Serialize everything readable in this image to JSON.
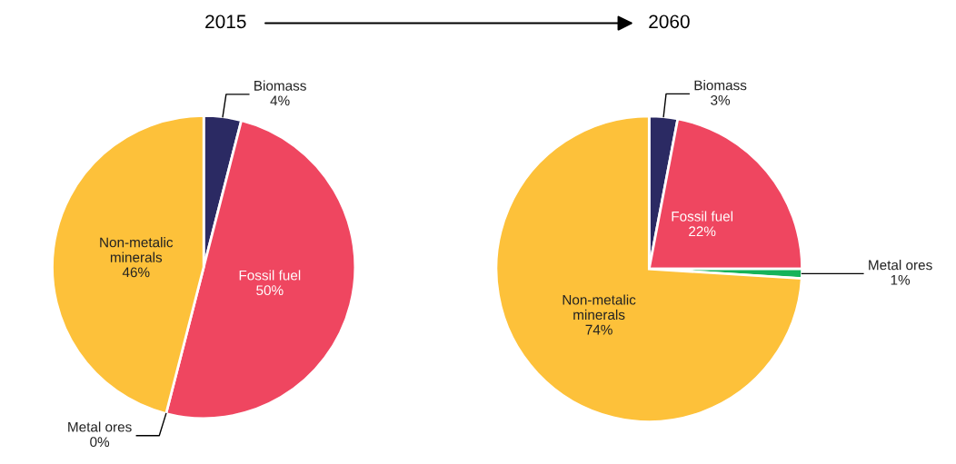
{
  "chart_data": [
    {
      "type": "pie",
      "title": "2015",
      "categories": [
        "Biomass",
        "Fossil fuel",
        "Metal ores",
        "Non-metalic\nminerals"
      ],
      "values": [
        4,
        50,
        0,
        46
      ],
      "value_labels": [
        "4%",
        "50%",
        "0%",
        "46%"
      ],
      "colors": [
        "#2b2a63",
        "#ef4660",
        "#16b35a",
        "#fdc13a"
      ]
    },
    {
      "type": "pie",
      "title": "2060",
      "categories": [
        "Biomass",
        "Fossil fuel",
        "Metal ores",
        "Non-metalic\nminerals"
      ],
      "values": [
        3,
        22,
        1,
        74
      ],
      "value_labels": [
        "3%",
        "22%",
        "1%",
        "74%"
      ],
      "colors": [
        "#2b2a63",
        "#ef4660",
        "#16b35a",
        "#fdc13a"
      ]
    }
  ]
}
